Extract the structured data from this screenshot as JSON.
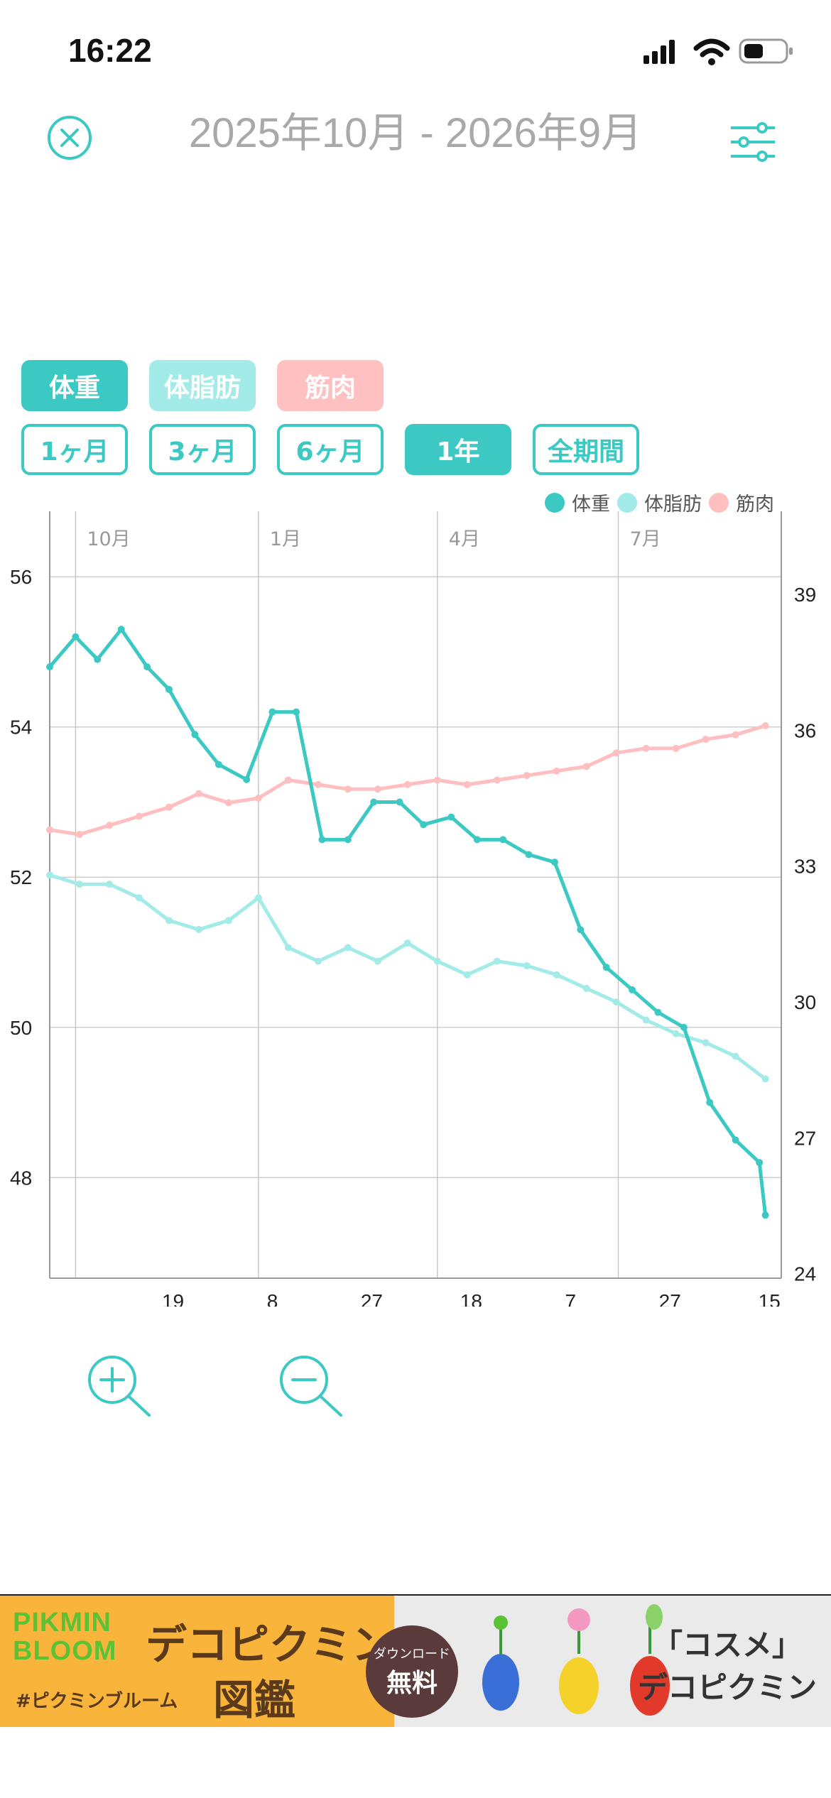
{
  "status_bar": {
    "time": "16:22"
  },
  "header": {
    "title": "2025年10月 - 2026年9月"
  },
  "metric_chips": [
    {
      "label": "体重",
      "color": "#3cc9c4"
    },
    {
      "label": "体脂肪",
      "color": "#a3ebe8"
    },
    {
      "label": "筋肉",
      "color": "#ffc0c2"
    }
  ],
  "period_chips": [
    {
      "label": "1ヶ月",
      "active": false
    },
    {
      "label": "3ヶ月",
      "active": false
    },
    {
      "label": "6ヶ月",
      "active": false
    },
    {
      "label": "1年",
      "active": true
    },
    {
      "label": "全期間",
      "active": false
    }
  ],
  "legend": [
    {
      "label": "体重",
      "color": "#3cc9c4"
    },
    {
      "label": "体脂肪",
      "color": "#a3ebe8"
    },
    {
      "label": "筋肉",
      "color": "#ffbfc1"
    }
  ],
  "chart_data": {
    "type": "line",
    "x_range": [
      "2025-09-18",
      "2026-09-21"
    ],
    "month_labels": [
      {
        "label": "10月",
        "date": "2025-10-01"
      },
      {
        "label": "1月",
        "date": "2026-01-01"
      },
      {
        "label": "4月",
        "date": "2026-04-01"
      },
      {
        "label": "7月",
        "date": "2026-07-01"
      }
    ],
    "x_ticks": [
      {
        "label": "19",
        "date": "2025-11-19"
      },
      {
        "label": "8",
        "date": "2026-01-08"
      },
      {
        "label": "27",
        "date": "2026-02-27"
      },
      {
        "label": "18",
        "date": "2026-04-18"
      },
      {
        "label": "7",
        "date": "2026-06-07"
      },
      {
        "label": "27",
        "date": "2026-07-27"
      },
      {
        "label": "15",
        "date": "2026-09-15"
      }
    ],
    "y_left": {
      "ticks": [
        48,
        50,
        52,
        54,
        56
      ],
      "ylim": [
        46.66,
        56.73
      ]
    },
    "y_right": {
      "ticks": [
        24,
        27,
        30,
        33,
        36,
        39
      ],
      "ylim": [
        23.9,
        40.6
      ]
    },
    "grid": true,
    "legend_position": "top-right",
    "series": [
      {
        "name": "体重",
        "axis": "left",
        "color": "#3cc9c4",
        "x": [
          "2025-09-18",
          "2025-10-01",
          "2025-10-12",
          "2025-10-24",
          "2025-11-06",
          "2025-11-17",
          "2025-11-30",
          "2025-12-12",
          "2025-12-26",
          "2026-01-08",
          "2026-01-20",
          "2026-02-02",
          "2026-02-15",
          "2026-02-28",
          "2026-03-13",
          "2026-03-25",
          "2026-04-08",
          "2026-04-21",
          "2026-05-04",
          "2026-05-17",
          "2026-05-30",
          "2026-06-12",
          "2026-06-25",
          "2026-07-08",
          "2026-07-21",
          "2026-08-03",
          "2026-08-16",
          "2026-08-29",
          "2026-09-10",
          "2026-09-13"
        ],
        "y": [
          54.8,
          55.2,
          54.9,
          55.3,
          54.8,
          54.5,
          53.9,
          53.5,
          53.3,
          54.2,
          54.2,
          52.5,
          52.5,
          53.0,
          53.0,
          52.7,
          52.8,
          52.5,
          52.5,
          52.3,
          52.2,
          51.3,
          50.8,
          50.5,
          50.2,
          50.0,
          49.0,
          48.5,
          48.2,
          47.5
        ]
      },
      {
        "name": "体脂肪",
        "axis": "right",
        "color": "#a3ebe8",
        "x": [
          "2025-09-18",
          "2025-10-03",
          "2025-10-18",
          "2025-11-02",
          "2025-11-17",
          "2025-12-02",
          "2025-12-17",
          "2026-01-01",
          "2026-01-16",
          "2026-01-31",
          "2026-02-15",
          "2026-03-02",
          "2026-03-17",
          "2026-04-01",
          "2026-04-16",
          "2026-05-01",
          "2026-05-16",
          "2026-05-31",
          "2026-06-15",
          "2026-06-30",
          "2026-07-15",
          "2026-07-30",
          "2026-08-14",
          "2026-08-29",
          "2026-09-13"
        ],
        "y": [
          32.8,
          32.6,
          32.6,
          32.3,
          31.8,
          31.6,
          31.8,
          32.3,
          31.2,
          30.9,
          31.2,
          30.9,
          31.3,
          30.9,
          30.6,
          30.9,
          30.8,
          30.6,
          30.3,
          30.0,
          29.6,
          29.3,
          29.1,
          28.8,
          28.3
        ]
      },
      {
        "name": "筋肉",
        "axis": "right",
        "color": "#ffbfc1",
        "x": [
          "2025-09-18",
          "2025-10-03",
          "2025-10-18",
          "2025-11-02",
          "2025-11-17",
          "2025-12-02",
          "2025-12-17",
          "2026-01-01",
          "2026-01-16",
          "2026-01-31",
          "2026-02-15",
          "2026-03-02",
          "2026-03-17",
          "2026-04-01",
          "2026-04-16",
          "2026-05-01",
          "2026-05-16",
          "2026-05-31",
          "2026-06-15",
          "2026-06-30",
          "2026-07-15",
          "2026-07-30",
          "2026-08-14",
          "2026-08-29",
          "2026-09-13"
        ],
        "y": [
          33.8,
          33.7,
          33.9,
          34.1,
          34.3,
          34.6,
          34.4,
          34.5,
          34.9,
          34.8,
          34.7,
          34.7,
          34.8,
          34.9,
          34.8,
          34.9,
          35.0,
          35.1,
          35.2,
          35.5,
          35.6,
          35.6,
          35.8,
          35.9,
          36.1
        ]
      }
    ]
  },
  "zoom": {
    "in_icon": "zoom-in-icon",
    "out_icon": "zoom-out-icon"
  },
  "ad": {
    "logo_line1": "PIKMIN",
    "logo_line2": "BLOOM",
    "hashtag": "#ピクミンブルーム",
    "title_line1": "デコピクミン",
    "title_line2": "図鑑",
    "badge_small": "ダウンロード",
    "badge_big": "無料",
    "quote_line1": "「コスメ」",
    "quote_line2": "デコピクミン"
  }
}
